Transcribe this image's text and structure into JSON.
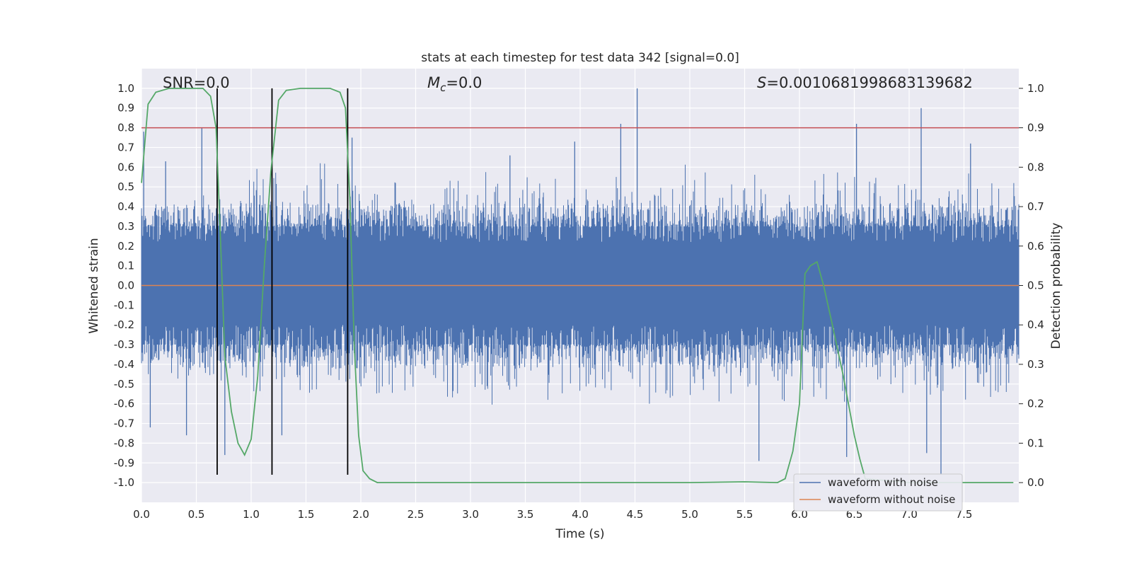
{
  "chart_data": {
    "type": "line",
    "title": "stats at each timestep for test data 342 [signal=0.0]",
    "xlabel": "Time (s)",
    "ylabel_left": "Whitened strain",
    "ylabel_right": "Detection probability",
    "xlim": [
      0.0,
      8.0
    ],
    "ylim_left": [
      -1.1,
      1.1
    ],
    "ylim_right": [
      -0.05,
      1.05
    ],
    "xticks": [
      "0.0",
      "0.5",
      "1.0",
      "1.5",
      "2.0",
      "2.5",
      "3.0",
      "3.5",
      "4.0",
      "4.5",
      "5.0",
      "5.5",
      "6.0",
      "6.5",
      "7.0",
      "7.5"
    ],
    "yticks_left": [
      "1.0",
      "0.9",
      "0.8",
      "0.7",
      "0.6",
      "0.5",
      "0.4",
      "0.3",
      "0.2",
      "0.1",
      "0.0",
      "-0.1",
      "-0.2",
      "-0.3",
      "-0.4",
      "-0.5",
      "-0.6",
      "-0.7",
      "-0.8",
      "-0.9",
      "-1.0"
    ],
    "yticks_right": [
      "1.0",
      "0.9",
      "0.8",
      "0.7",
      "0.6",
      "0.5",
      "0.4",
      "0.3",
      "0.2",
      "0.1",
      "0.0"
    ],
    "annotations": {
      "snr": "SNR=0.0",
      "mc_symbol": "M",
      "mc_sub": "c",
      "mc_value": "=0.0",
      "s_symbol": "S",
      "s_value": "=0.0010681998683139682"
    },
    "threshold_right": 0.9,
    "vertical_lines_x": [
      0.69,
      1.19,
      1.88
    ],
    "vertical_lines_range": [
      -0.96,
      1.0
    ],
    "series": [
      {
        "name": "waveform with noise",
        "color": "#4c72b0",
        "axis": "left",
        "note": "dense noise trace, amplitude envelope approx +/-0.4 with spikes",
        "envelope_upper": [
          0.42,
          0.45,
          0.5,
          0.55,
          0.6,
          0.48,
          0.62,
          0.52,
          0.5,
          0.58,
          0.45,
          0.55,
          0.62,
          0.5,
          0.6,
          0.55,
          0.52,
          0.62,
          0.58,
          0.65,
          0.6,
          0.55,
          0.6,
          0.5,
          0.58,
          0.62,
          0.55,
          0.6,
          0.52,
          0.6,
          0.58,
          0.55
        ],
        "envelope_lower": [
          -0.45,
          -0.5,
          -0.55,
          -0.5,
          -0.6,
          -0.55,
          -0.58,
          -0.5,
          -0.55,
          -0.6,
          -0.5,
          -0.58,
          -0.62,
          -0.55,
          -0.6,
          -0.58,
          -0.55,
          -0.62,
          -0.6,
          -0.65,
          -0.58,
          -0.6,
          -0.55,
          -0.6,
          -0.58,
          -0.62,
          -0.55,
          -0.6,
          -0.58,
          -0.55,
          -0.6,
          -0.55
        ],
        "spikes": [
          {
            "x": 0.02,
            "y": 0.78
          },
          {
            "x": 0.08,
            "y": -0.72
          },
          {
            "x": 0.22,
            "y": 0.63
          },
          {
            "x": 0.41,
            "y": -0.76
          },
          {
            "x": 0.55,
            "y": 0.8
          },
          {
            "x": 0.76,
            "y": -0.86
          },
          {
            "x": 1.28,
            "y": -0.76
          },
          {
            "x": 1.92,
            "y": 0.75
          },
          {
            "x": 3.36,
            "y": 0.66
          },
          {
            "x": 3.95,
            "y": 0.73
          },
          {
            "x": 4.37,
            "y": 0.82
          },
          {
            "x": 4.52,
            "y": 1.0
          },
          {
            "x": 5.63,
            "y": -0.89
          },
          {
            "x": 6.52,
            "y": 0.82
          },
          {
            "x": 6.43,
            "y": -0.87
          },
          {
            "x": 7.11,
            "y": 0.9
          },
          {
            "x": 7.16,
            "y": -0.85
          },
          {
            "x": 7.29,
            "y": -0.96
          },
          {
            "x": 7.56,
            "y": 0.72
          }
        ]
      },
      {
        "name": "waveform without noise",
        "color": "#dd8452",
        "axis": "left",
        "x": [
          0.0,
          8.0
        ],
        "y": [
          0.0,
          0.0
        ]
      },
      {
        "name": "detection probability",
        "color": "#55a868",
        "axis": "right",
        "x": [
          0.0,
          0.06,
          0.13,
          0.25,
          0.4,
          0.56,
          0.63,
          0.68,
          0.72,
          0.76,
          0.82,
          0.88,
          0.94,
          1.0,
          1.06,
          1.12,
          1.18,
          1.25,
          1.32,
          1.45,
          1.6,
          1.72,
          1.81,
          1.86,
          1.9,
          1.94,
          1.98,
          2.02,
          2.08,
          2.15,
          2.5,
          3.0,
          4.0,
          5.0,
          5.5,
          5.8,
          5.87,
          5.94,
          6.0,
          6.05,
          6.1,
          6.16,
          6.22,
          6.3,
          6.4,
          6.5,
          6.55,
          6.6,
          7.0,
          7.5,
          7.95
        ],
        "y": [
          0.76,
          0.96,
          0.99,
          1.0,
          1.0,
          1.0,
          0.98,
          0.9,
          0.62,
          0.32,
          0.18,
          0.1,
          0.07,
          0.11,
          0.27,
          0.55,
          0.79,
          0.97,
          0.995,
          1.0,
          1.0,
          1.0,
          0.99,
          0.95,
          0.72,
          0.35,
          0.12,
          0.03,
          0.01,
          0.0,
          0.0,
          0.0,
          0.0,
          0.0,
          0.002,
          0.0,
          0.01,
          0.08,
          0.2,
          0.53,
          0.55,
          0.56,
          0.5,
          0.4,
          0.27,
          0.12,
          0.06,
          0.01,
          0.0,
          0.0,
          0.0
        ]
      }
    ],
    "legend": {
      "placement": "bottom-right",
      "entries": [
        {
          "label": "waveform with noise",
          "color": "#4c72b0"
        },
        {
          "label": "waveform without noise",
          "color": "#dd8452"
        }
      ]
    }
  }
}
